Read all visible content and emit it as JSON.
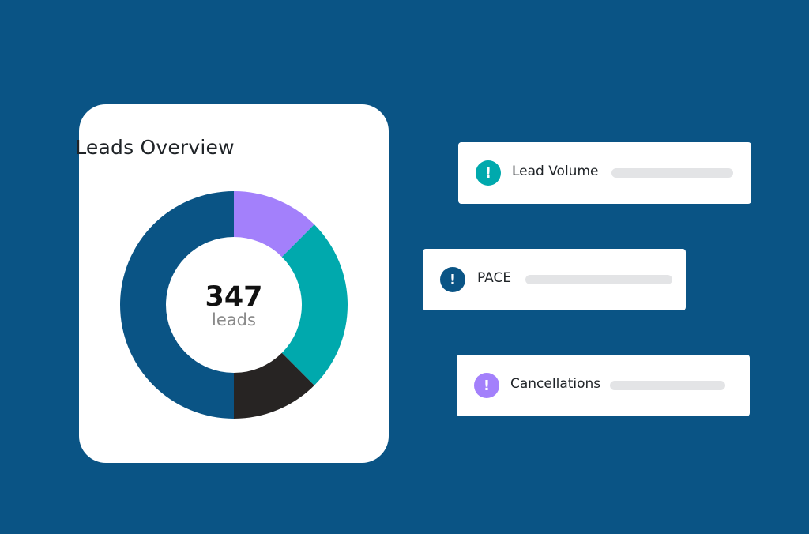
{
  "card": {
    "title": "Leads Overview",
    "center_value": "347",
    "center_unit": "leads"
  },
  "chart_data": {
    "type": "pie",
    "series": [
      {
        "value": 50,
        "color": "#0a5485"
      },
      {
        "value": 12.5,
        "color": "#a380fb"
      },
      {
        "value": 25,
        "color": "#00a9ad"
      },
      {
        "value": 12.5,
        "color": "#272423"
      }
    ],
    "start_angle_deg": 90
  },
  "alerts": [
    {
      "label": "Lead Volume",
      "icon": "exclamation-icon",
      "symbol": "!",
      "color": "#00a9ad"
    },
    {
      "label": "PACE",
      "icon": "exclamation-icon",
      "symbol": "!",
      "color": "#0a5485"
    },
    {
      "label": "Cancellations",
      "icon": "exclamation-icon",
      "symbol": "!",
      "color": "#a380fb"
    }
  ]
}
